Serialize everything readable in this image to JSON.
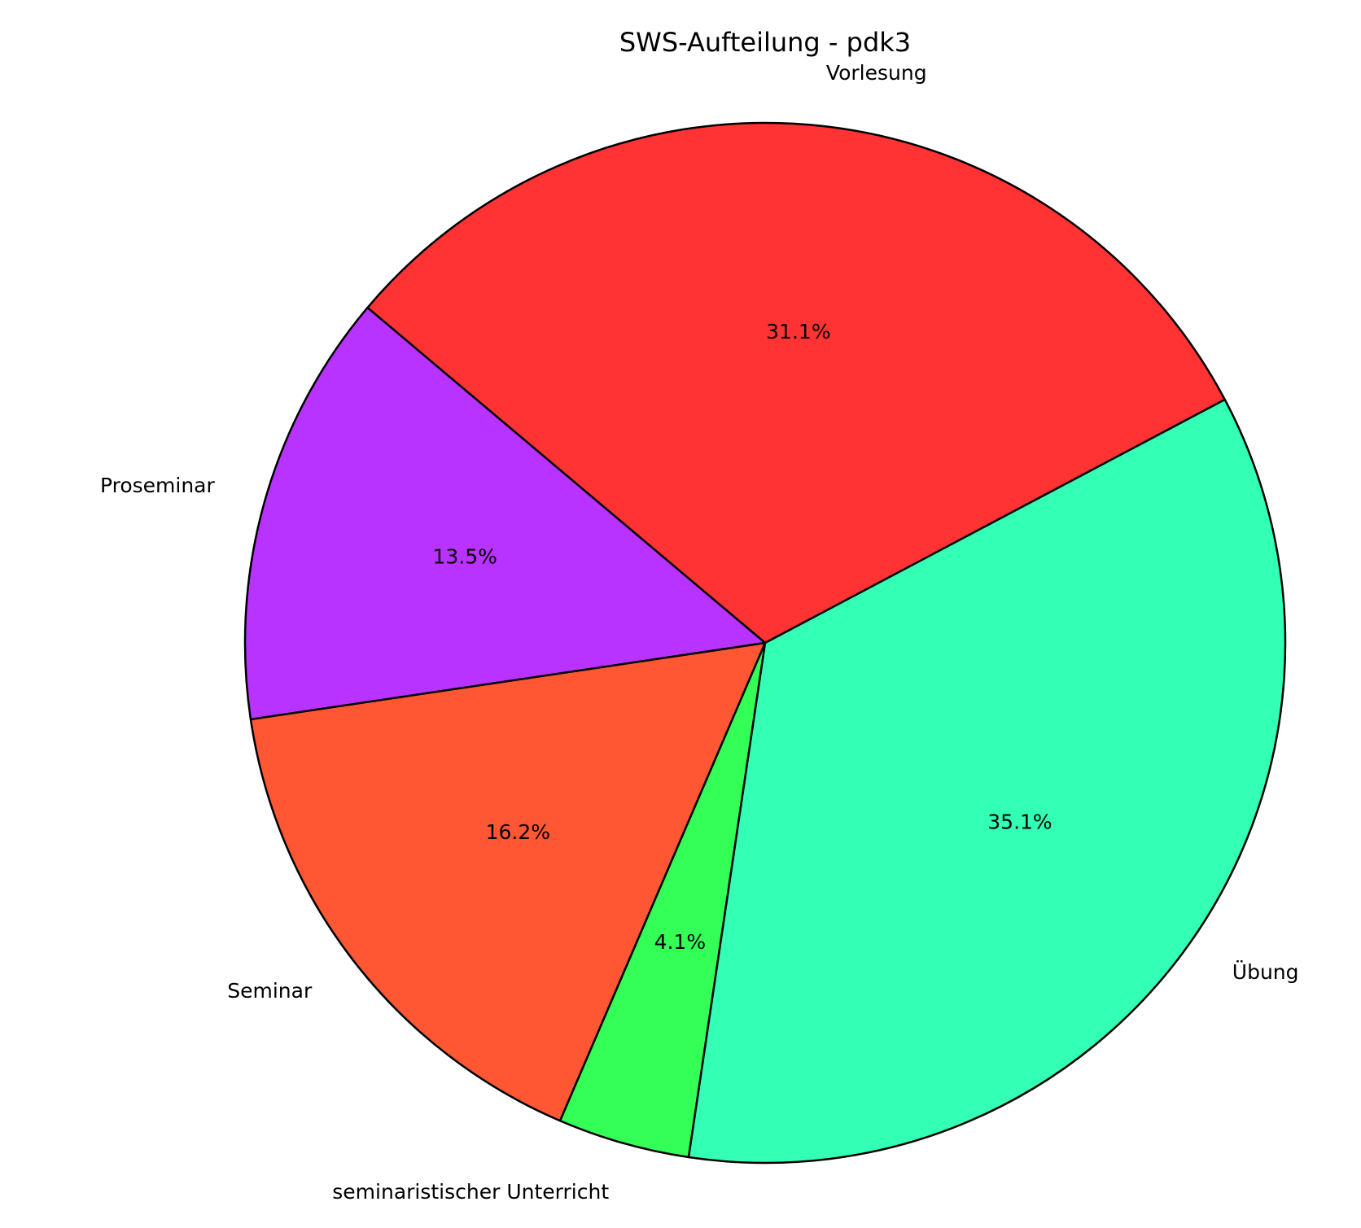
{
  "chart_data": {
    "type": "pie",
    "title": "SWS-Aufteilung - pdk3",
    "categories": [
      "Vorlesung",
      "Proseminar",
      "Seminar",
      "seminaristischer Unterricht",
      "Übung"
    ],
    "values": [
      31.1,
      13.5,
      16.2,
      4.1,
      35.1
    ],
    "value_labels": [
      "31.1%",
      "13.5%",
      "16.2%",
      "4.1%",
      "35.1%"
    ],
    "colors": [
      "#ff3333",
      "#b833ff",
      "#ff5733",
      "#33ff57",
      "#33ffb5"
    ]
  }
}
